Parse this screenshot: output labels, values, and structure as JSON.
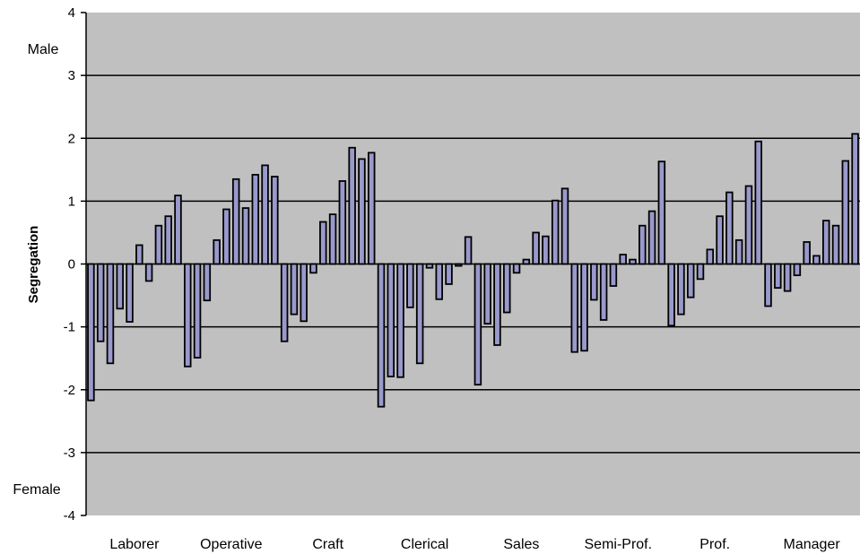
{
  "chart_data": {
    "type": "bar",
    "title": "",
    "xlabel": "",
    "ylabel": "Segregation",
    "ylim": [
      -4,
      4
    ],
    "yticks": [
      4,
      3,
      2,
      1,
      0,
      -1,
      -2,
      -3,
      -4
    ],
    "ytick_labels": [
      "4",
      "3",
      "2",
      "1",
      "0",
      "-1",
      "-2",
      "-3",
      "-4"
    ],
    "y_annotations": {
      "top": "Male",
      "bottom": "Female"
    },
    "grid": true,
    "plot_background": "#C0C0C0",
    "bar_color": "#9999CC",
    "groups": [
      {
        "label": "Laborer",
        "values": [
          -2.17,
          -1.23,
          -1.58,
          -0.71,
          -0.92,
          0.3,
          -0.27,
          0.61,
          0.76,
          1.09
        ]
      },
      {
        "label": "Operative",
        "values": [
          -1.63,
          -1.49,
          -0.58,
          0.38,
          0.87,
          1.35,
          0.89,
          1.42,
          1.57,
          1.39
        ]
      },
      {
        "label": "Craft",
        "values": [
          -1.23,
          -0.8,
          -0.91,
          -0.14,
          0.67,
          0.79,
          1.32,
          1.85,
          1.67,
          1.77
        ]
      },
      {
        "label": "Clerical",
        "values": [
          -2.27,
          -1.79,
          -1.8,
          -0.69,
          -1.58,
          -0.06,
          -0.56,
          -0.32,
          -0.03,
          0.43
        ]
      },
      {
        "label": "Sales",
        "values": [
          -1.92,
          -0.95,
          -1.29,
          -0.77,
          -0.14,
          0.07,
          0.5,
          0.44,
          1.01,
          1.2
        ]
      },
      {
        "label": "Semi-Prof.",
        "values": [
          -1.4,
          -1.38,
          -0.57,
          -0.89,
          -0.35,
          0.15,
          0.07,
          0.61,
          0.84,
          1.63
        ]
      },
      {
        "label": "Prof.",
        "values": [
          -0.98,
          -0.8,
          -0.53,
          -0.24,
          0.23,
          0.76,
          1.14,
          0.38,
          1.24,
          1.95
        ]
      },
      {
        "label": "Manager",
        "values": [
          -0.67,
          -0.38,
          -0.43,
          -0.18,
          0.35,
          0.13,
          0.69,
          0.61,
          1.64,
          2.07
        ]
      }
    ]
  }
}
